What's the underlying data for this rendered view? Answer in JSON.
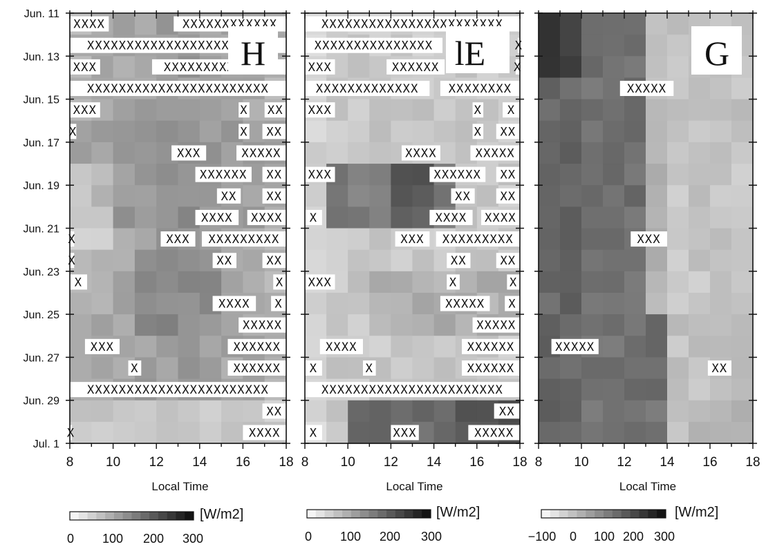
{
  "chart_data": {
    "type": "heatmap",
    "y_tick_labels": [
      "Jun. 11",
      "Jun. 13",
      "Jun. 15",
      "Jun. 17",
      "Jun. 19",
      "Jun. 21",
      "Jun. 23",
      "Jun. 25",
      "Jun. 27",
      "Jun. 29",
      "Jul. 1"
    ],
    "x_tick_labels": [
      "8",
      "10",
      "12",
      "14",
      "16",
      "18"
    ],
    "xlim": [
      8,
      18
    ],
    "panels": [
      {
        "letter": "H",
        "xlabel": "Local Time",
        "colorbar": {
          "unit": "[W/m2]",
          "ticks": [
            "0",
            "100",
            "200",
            "300"
          ],
          "range": [
            0,
            300
          ]
        },
        "description_level": "mid values around 120-220 W/m2, darker midday, very light late June",
        "x_marks": [
          {
            "row": 0,
            "segments": [
              [
                8,
                9.8
              ],
              [
                12.8,
                18
              ]
            ]
          },
          {
            "row": 1,
            "segments": [
              [
                8,
                18
              ]
            ]
          },
          {
            "row": 2,
            "segments": [
              [
                8,
                9.4
              ],
              [
                11.8,
                18
              ]
            ]
          },
          {
            "row": 3,
            "segments": [
              [
                8,
                18
              ]
            ]
          },
          {
            "row": 4,
            "segments": [
              [
                8,
                9.4
              ],
              [
                15.8,
                16.3
              ],
              [
                17,
                18
              ]
            ]
          },
          {
            "row": 5,
            "segments": [
              [
                8,
                8.3
              ],
              [
                15.8,
                16.3
              ],
              [
                16.9,
                18
              ]
            ]
          },
          {
            "row": 6,
            "segments": [
              [
                12.7,
                14.3
              ],
              [
                15.7,
                18
              ]
            ]
          },
          {
            "row": 7,
            "segments": [
              [
                13.8,
                16.4
              ],
              [
                16.9,
                18
              ]
            ]
          },
          {
            "row": 8,
            "segments": [
              [
                14.8,
                15.9
              ],
              [
                16.9,
                18
              ]
            ]
          },
          {
            "row": 9,
            "segments": [
              [
                13.8,
                15.8
              ],
              [
                16.2,
                18
              ]
            ]
          },
          {
            "row": 10,
            "segments": [
              [
                8,
                8.2
              ],
              [
                12.2,
                13.8
              ],
              [
                14.1,
                18
              ]
            ]
          },
          {
            "row": 11,
            "segments": [
              [
                8,
                8.2
              ],
              [
                14.6,
                15.7
              ],
              [
                16.9,
                18
              ]
            ]
          },
          {
            "row": 12,
            "segments": [
              [
                8,
                8.8
              ],
              [
                17.4,
                18
              ]
            ]
          },
          {
            "row": 13,
            "segments": [
              [
                14.6,
                16.6
              ],
              [
                17.3,
                18
              ]
            ]
          },
          {
            "row": 14,
            "segments": [
              [
                15.8,
                18
              ]
            ]
          },
          {
            "row": 15,
            "segments": [
              [
                8.7,
                10.3
              ],
              [
                15.3,
                18
              ]
            ]
          },
          {
            "row": 16,
            "segments": [
              [
                10.7,
                11.3
              ],
              [
                15.3,
                18
              ]
            ]
          },
          {
            "row": 17,
            "segments": [
              [
                8,
                18
              ]
            ]
          },
          {
            "row": 18,
            "segments": [
              [
                16.9,
                18
              ]
            ]
          },
          {
            "row": 19,
            "segments": [
              [
                8,
                8.1
              ],
              [
                16,
                18
              ]
            ]
          }
        ]
      },
      {
        "letter": "lE",
        "xlabel": "Local Time",
        "colorbar": {
          "unit": "[W/m2]",
          "ticks": [
            "0",
            "100",
            "200",
            "300"
          ],
          "range": [
            0,
            300
          ]
        },
        "description_level": "generally low values, dark maximum around Jun. 19 and early July",
        "x_marks": [
          {
            "row": 0,
            "segments": [
              [
                8,
                18
              ]
            ]
          },
          {
            "row": 1,
            "segments": [
              [
                8,
                14.4
              ],
              [
                17.9,
                18
              ]
            ]
          },
          {
            "row": 2,
            "segments": [
              [
                8,
                9.4
              ],
              [
                11.8,
                14.5
              ],
              [
                17.8,
                18
              ]
            ]
          },
          {
            "row": 3,
            "segments": [
              [
                8,
                13.8
              ],
              [
                14.3,
                18
              ]
            ]
          },
          {
            "row": 4,
            "segments": [
              [
                8,
                9.4
              ],
              [
                15.8,
                16.3
              ],
              [
                17.2,
                18
              ]
            ]
          },
          {
            "row": 5,
            "segments": [
              [
                15.8,
                16.3
              ],
              [
                16.9,
                18
              ]
            ]
          },
          {
            "row": 6,
            "segments": [
              [
                12.5,
                14.3
              ],
              [
                15.7,
                18
              ]
            ]
          },
          {
            "row": 7,
            "segments": [
              [
                8,
                9.4
              ],
              [
                13.8,
                16.4
              ],
              [
                16.9,
                18
              ]
            ]
          },
          {
            "row": 8,
            "segments": [
              [
                14.8,
                15.9
              ],
              [
                16.9,
                18
              ]
            ]
          },
          {
            "row": 9,
            "segments": [
              [
                8,
                8.8
              ],
              [
                13.8,
                15.8
              ],
              [
                16.2,
                18
              ]
            ]
          },
          {
            "row": 10,
            "segments": [
              [
                12.2,
                13.8
              ],
              [
                14.1,
                18
              ]
            ]
          },
          {
            "row": 11,
            "segments": [
              [
                14.6,
                15.7
              ],
              [
                16.9,
                18
              ]
            ]
          },
          {
            "row": 12,
            "segments": [
              [
                8,
                9.4
              ],
              [
                14.6,
                15.2
              ],
              [
                17.4,
                18
              ]
            ]
          },
          {
            "row": 13,
            "segments": [
              [
                14.3,
                16.6
              ],
              [
                17.3,
                18
              ]
            ]
          },
          {
            "row": 14,
            "segments": [
              [
                15.8,
                18
              ]
            ]
          },
          {
            "row": 15,
            "segments": [
              [
                8.7,
                10.7
              ],
              [
                15.3,
                18
              ]
            ]
          },
          {
            "row": 16,
            "segments": [
              [
                8,
                8.8
              ],
              [
                10.7,
                11.3
              ],
              [
                15.3,
                18
              ]
            ]
          },
          {
            "row": 17,
            "segments": [
              [
                8,
                18
              ]
            ]
          },
          {
            "row": 18,
            "segments": [
              [
                16.8,
                18
              ]
            ]
          },
          {
            "row": 19,
            "segments": [
              [
                8,
                8.8
              ],
              [
                12,
                13.3
              ],
              [
                15.6,
                18
              ]
            ]
          }
        ]
      },
      {
        "letter": "G",
        "xlabel": "Local Time",
        "colorbar": {
          "unit": "[W/m2]",
          "ticks": [
            "−100",
            "0",
            "100",
            "200",
            "300"
          ],
          "range": [
            -100,
            300
          ]
        },
        "description_level": "dark band in the morning (8-12 h), lighter afternoon",
        "x_marks": [
          {
            "row": 3,
            "segments": [
              [
                11.8,
                14.3
              ]
            ]
          },
          {
            "row": 10,
            "segments": [
              [
                12.3,
                14
              ]
            ]
          },
          {
            "row": 15,
            "segments": [
              [
                8.6,
                10.8
              ]
            ]
          },
          {
            "row": 16,
            "segments": [
              [
                15.9,
                17
              ]
            ]
          }
        ]
      }
    ]
  }
}
